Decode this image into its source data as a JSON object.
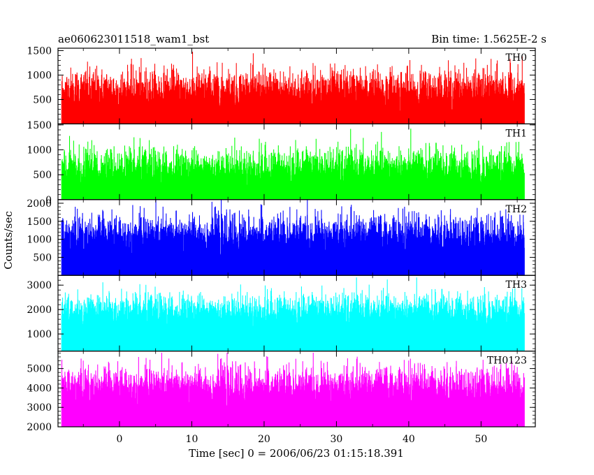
{
  "header": {
    "title": "ae060623011518_wam1_bst",
    "bin_time": "Bin time: 1.5625E-2 s"
  },
  "chart_data": {
    "type": "line",
    "xlabel": "Time [sec] 0 = 2006/06/23 01:15:18.391",
    "ylabel": "Counts/sec",
    "xlim": [
      -8.5,
      57.5
    ],
    "x_data_range": [
      -8,
      56
    ],
    "x_ticks": [
      0,
      10,
      20,
      30,
      40,
      50
    ],
    "x_tick_labels": [
      "0",
      "10",
      "20",
      "30",
      "40",
      "50"
    ],
    "panels": [
      {
        "name": "TH0",
        "color": "#ff0000",
        "ylim": [
          0,
          1550
        ],
        "ticks": [
          500,
          1000,
          1500
        ],
        "tick_labels": [
          "500",
          "1000",
          "1500"
        ],
        "baseline": 0,
        "median": 620,
        "spread": 260,
        "max": 1550,
        "min": 30
      },
      {
        "name": "TH1",
        "color": "#00ff00",
        "ylim": [
          0,
          1520
        ],
        "ticks": [
          0,
          500,
          1000,
          1500
        ],
        "tick_labels": [
          "0",
          "500",
          "1000",
          "1500"
        ],
        "baseline": 0,
        "median": 560,
        "spread": 240,
        "max": 1520,
        "min": 0
      },
      {
        "name": "TH2",
        "color": "#0000ff",
        "ylim": [
          0,
          2100
        ],
        "ticks": [
          500,
          1000,
          1500,
          2000
        ],
        "tick_labels": [
          "500",
          "1000",
          "1500",
          "2000"
        ],
        "baseline": 0,
        "median": 1020,
        "spread": 340,
        "max": 2100,
        "min": 80
      },
      {
        "name": "TH3",
        "color": "#00ffff",
        "ylim": [
          300,
          3400
        ],
        "ticks": [
          1000,
          2000,
          3000
        ],
        "tick_labels": [
          "1000",
          "2000",
          "3000"
        ],
        "baseline": 300,
        "median": 1800,
        "spread": 430,
        "max": 3300,
        "min": 500
      },
      {
        "name": "TH0123",
        "color": "#ff00ff",
        "ylim": [
          2000,
          5900
        ],
        "ticks": [
          2000,
          3000,
          4000,
          5000
        ],
        "tick_labels": [
          "2000",
          "3000",
          "4000",
          "5000"
        ],
        "baseline": 2000,
        "median": 3900,
        "spread": 620,
        "max": 5800,
        "min": 2000
      }
    ]
  }
}
